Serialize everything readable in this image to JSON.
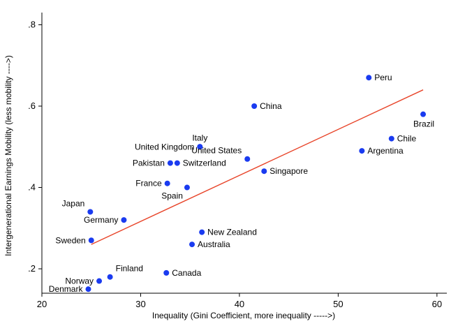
{
  "chart_data": {
    "type": "scatter",
    "title": "",
    "xlabel": "Inequality (Gini Coefficient, more inequality ----->)",
    "ylabel": "Intergenerational Earnings Mobility (less mobility ---->)",
    "xlim": [
      20,
      61
    ],
    "ylim": [
      0.14,
      0.83
    ],
    "xticks": [
      20,
      30,
      40,
      50,
      60
    ],
    "yticks": [
      0.2,
      0.4,
      0.6,
      0.8
    ],
    "ytick_labels": [
      ".2",
      ".4",
      ".6",
      ".8"
    ],
    "grid": false,
    "point_color": "#1a3bf0",
    "line_color": "#e8452a",
    "points": [
      {
        "label": "Denmark",
        "x": 24.7,
        "y": 0.15,
        "label_pos": "left"
      },
      {
        "label": "Norway",
        "x": 25.8,
        "y": 0.17,
        "label_pos": "left"
      },
      {
        "label": "Finland",
        "x": 26.9,
        "y": 0.18,
        "label_pos": "upper-right"
      },
      {
        "label": "Sweden",
        "x": 25.0,
        "y": 0.27,
        "label_pos": "left"
      },
      {
        "label": "Germany",
        "x": 28.3,
        "y": 0.32,
        "label_pos": "left"
      },
      {
        "label": "Japan",
        "x": 24.9,
        "y": 0.34,
        "label_pos": "upper-left"
      },
      {
        "label": "Canada",
        "x": 32.6,
        "y": 0.19,
        "label_pos": "right"
      },
      {
        "label": "Australia",
        "x": 35.2,
        "y": 0.26,
        "label_pos": "right"
      },
      {
        "label": "New Zealand",
        "x": 36.2,
        "y": 0.29,
        "label_pos": "right"
      },
      {
        "label": "France",
        "x": 32.7,
        "y": 0.41,
        "label_pos": "left"
      },
      {
        "label": "Spain",
        "x": 34.7,
        "y": 0.4,
        "label_pos": "lower-left"
      },
      {
        "label": "Pakistan",
        "x": 33.0,
        "y": 0.46,
        "label_pos": "left"
      },
      {
        "label": "Switzerland",
        "x": 33.7,
        "y": 0.46,
        "label_pos": "right"
      },
      {
        "label": "United Kingdom",
        "x": 36.0,
        "y": 0.5,
        "label_pos": "left"
      },
      {
        "label": "Italy",
        "x": 36.0,
        "y": 0.5,
        "label_pos": "above"
      },
      {
        "label": "United States",
        "x": 40.8,
        "y": 0.47,
        "label_pos": "upper-left"
      },
      {
        "label": "Singapore",
        "x": 42.5,
        "y": 0.44,
        "label_pos": "right"
      },
      {
        "label": "China",
        "x": 41.5,
        "y": 0.6,
        "label_pos": "right"
      },
      {
        "label": "Argentina",
        "x": 52.4,
        "y": 0.49,
        "label_pos": "right"
      },
      {
        "label": "Chile",
        "x": 55.4,
        "y": 0.52,
        "label_pos": "right"
      },
      {
        "label": "Brazil",
        "x": 58.6,
        "y": 0.58,
        "label_pos": "lower-right"
      },
      {
        "label": "Peru",
        "x": 53.1,
        "y": 0.67,
        "label_pos": "right"
      }
    ],
    "fit_line": {
      "x": [
        25.0,
        58.6
      ],
      "y": [
        0.26,
        0.64
      ]
    }
  }
}
